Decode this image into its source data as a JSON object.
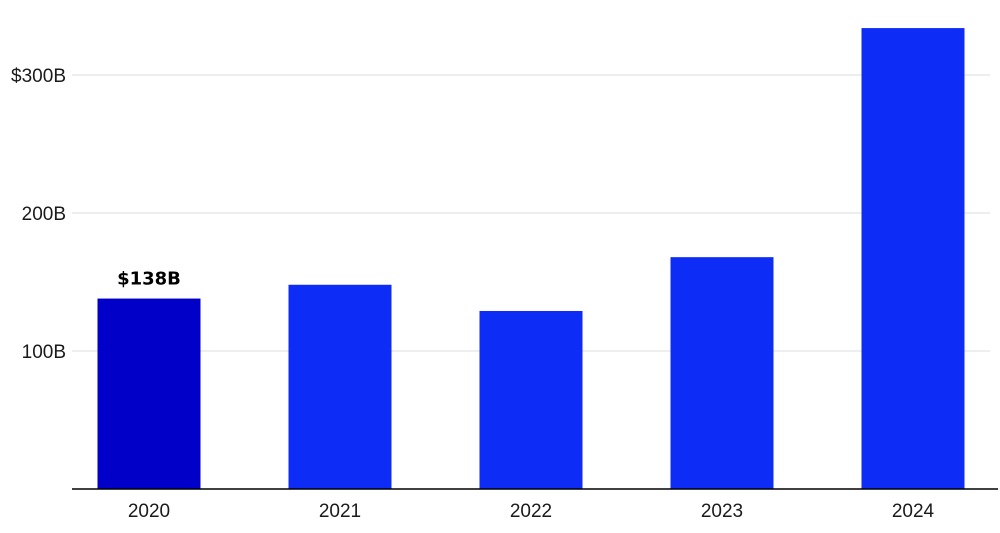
{
  "chart_data": {
    "type": "bar",
    "categories": [
      "2020",
      "2021",
      "2022",
      "2023",
      "2024"
    ],
    "values": [
      138,
      148,
      129,
      168,
      334
    ],
    "unit": "B",
    "ylim": [
      0,
      340
    ],
    "yticks": [
      {
        "value": 100,
        "label": "100B"
      },
      {
        "value": 200,
        "label": "200B"
      },
      {
        "value": 300,
        "label": "$300B"
      }
    ],
    "data_labels": [
      {
        "category": "2020",
        "label": "$138B"
      }
    ],
    "highlight_category": "2020",
    "colors": {
      "bar": "#0d2cf5",
      "highlight": "#0000c8",
      "grid": "#dddddd",
      "axis": "#000000"
    },
    "grid": true,
    "legend": "none",
    "title": "",
    "xlabel": "",
    "ylabel": ""
  }
}
